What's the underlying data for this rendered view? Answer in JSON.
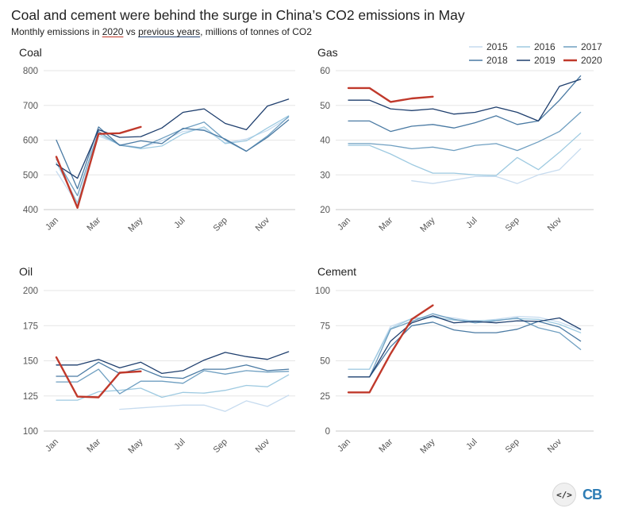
{
  "title": "Coal and cement were behind the surge in China’s CO2 emissions in May",
  "subtitle": {
    "prefix": "Monthly emissions in ",
    "highlight_2020": "2020",
    "middle": " vs ",
    "highlight_prev": "previous years",
    "suffix": ", millions of tonnes of CO2"
  },
  "legend": [
    {
      "label": "2015",
      "color": "#c6dbef"
    },
    {
      "label": "2016",
      "color": "#9ecae1"
    },
    {
      "label": "2017",
      "color": "#6f9fc1"
    },
    {
      "label": "2018",
      "color": "#4a7aa3"
    },
    {
      "label": "2019",
      "color": "#1f3f6e"
    },
    {
      "label": "2020",
      "color": "#c0392b"
    }
  ],
  "footer": {
    "code_icon": "code-icon",
    "brand": "CB"
  },
  "chart_data": [
    {
      "type": "line",
      "title": "Coal",
      "ylim": [
        400,
        800
      ],
      "yticks": [
        400,
        500,
        600,
        700,
        800
      ],
      "months": [
        "Jan",
        "Feb",
        "Mar",
        "Apr",
        "May",
        "Jun",
        "Jul",
        "Aug",
        "Sep",
        "Oct",
        "Nov",
        "Dec"
      ],
      "xticks": [
        "Jan",
        "Mar",
        "May",
        "Jul",
        "Sep",
        "Nov"
      ],
      "series": [
        {
          "name": "2015",
          "values": [
            510,
            415,
            612,
            588,
            578,
            598,
            625,
            632,
            592,
            603,
            628,
            665
          ]
        },
        {
          "name": "2016",
          "values": [
            535,
            420,
            618,
            586,
            575,
            583,
            618,
            638,
            590,
            598,
            635,
            670
          ]
        },
        {
          "name": "2017",
          "values": [
            545,
            440,
            625,
            585,
            578,
            605,
            632,
            652,
            600,
            568,
            612,
            668
          ]
        },
        {
          "name": "2018",
          "values": [
            600,
            460,
            638,
            585,
            598,
            590,
            634,
            628,
            603,
            568,
            608,
            658
          ]
        },
        {
          "name": "2019",
          "values": [
            530,
            490,
            630,
            608,
            610,
            635,
            680,
            690,
            648,
            630,
            698,
            718
          ]
        },
        {
          "name": "2020",
          "values": [
            552,
            405,
            618,
            620,
            638
          ]
        }
      ]
    },
    {
      "type": "line",
      "title": "Gas",
      "ylim": [
        20,
        60
      ],
      "yticks": [
        20,
        30,
        40,
        50,
        60
      ],
      "months": [
        "Jan",
        "Feb",
        "Mar",
        "Apr",
        "May",
        "Jun",
        "Jul",
        "Aug",
        "Sep",
        "Oct",
        "Nov",
        "Dec"
      ],
      "xticks": [
        "Jan",
        "Mar",
        "May",
        "Jul",
        "Sep",
        "Nov"
      ],
      "series": [
        {
          "name": "2015",
          "values": [
            null,
            null,
            null,
            28.3,
            27.5,
            28.5,
            29.5,
            29.5,
            27.5,
            30.0,
            31.5,
            37.5
          ]
        },
        {
          "name": "2016",
          "values": [
            38.5,
            38.5,
            36.0,
            33.0,
            30.5,
            30.5,
            30.0,
            29.8,
            35.0,
            31.5,
            36.5,
            42.0
          ]
        },
        {
          "name": "2017",
          "values": [
            39.0,
            39.0,
            38.5,
            37.5,
            38.0,
            37.0,
            38.5,
            39.0,
            37.0,
            39.5,
            42.5,
            48.0
          ]
        },
        {
          "name": "2018",
          "values": [
            45.5,
            45.5,
            42.5,
            44.0,
            44.5,
            43.5,
            45.0,
            47.0,
            44.5,
            45.5,
            51.5,
            58.5
          ]
        },
        {
          "name": "2019",
          "values": [
            51.5,
            51.5,
            49.0,
            48.5,
            49.0,
            47.5,
            48.0,
            49.5,
            48.0,
            45.5,
            55.5,
            57.5
          ]
        },
        {
          "name": "2020",
          "values": [
            55.0,
            55.0,
            51.0,
            52.0,
            52.5
          ]
        }
      ]
    },
    {
      "type": "line",
      "title": "Oil",
      "ylim": [
        100,
        200
      ],
      "yticks": [
        100,
        125,
        150,
        175,
        200
      ],
      "months": [
        "Jan",
        "Feb",
        "Mar",
        "Apr",
        "May",
        "Jun",
        "Jul",
        "Aug",
        "Sep",
        "Oct",
        "Nov",
        "Dec"
      ],
      "xticks": [
        "Jan",
        "Mar",
        "May",
        "Jul",
        "Sep",
        "Nov"
      ],
      "series": [
        {
          "name": "2015",
          "values": [
            null,
            null,
            null,
            115.5,
            116.5,
            117.5,
            118.5,
            118.5,
            114.0,
            121.5,
            117.5,
            125.5
          ]
        },
        {
          "name": "2016",
          "values": [
            122.0,
            122.0,
            128.0,
            129.0,
            130.5,
            124.0,
            127.5,
            127.0,
            129.0,
            132.5,
            131.5,
            140.0
          ]
        },
        {
          "name": "2017",
          "values": [
            135.0,
            135.0,
            144.0,
            126.5,
            135.5,
            135.5,
            134.0,
            143.0,
            140.5,
            143.0,
            142.0,
            142.5
          ]
        },
        {
          "name": "2018",
          "values": [
            139.0,
            139.0,
            149.0,
            141.0,
            144.5,
            138.5,
            137.5,
            144.0,
            144.0,
            147.0,
            143.0,
            144.0
          ]
        },
        {
          "name": "2019",
          "values": [
            147.0,
            147.0,
            151.0,
            145.0,
            149.0,
            141.0,
            143.0,
            150.5,
            156.0,
            153.0,
            151.0,
            156.5
          ]
        },
        {
          "name": "2020",
          "values": [
            152.5,
            124.5,
            124.0,
            141.5,
            142.5
          ]
        }
      ]
    },
    {
      "type": "line",
      "title": "Cement",
      "ylim": [
        0,
        100
      ],
      "yticks": [
        0,
        25,
        50,
        75,
        100
      ],
      "months": [
        "Jan",
        "Feb",
        "Mar",
        "Apr",
        "May",
        "Jun",
        "Jul",
        "Aug",
        "Sep",
        "Oct",
        "Nov",
        "Dec"
      ],
      "xticks": [
        "Jan",
        "Mar",
        "May",
        "Jul",
        "Sep",
        "Nov"
      ],
      "series": [
        {
          "name": "2015",
          "values": [
            44.0,
            44.0,
            74.5,
            80.0,
            82.0,
            80.5,
            78.0,
            79.5,
            81.5,
            81.0,
            77.5,
            72.0
          ]
        },
        {
          "name": "2016",
          "values": [
            44.0,
            44.0,
            73.0,
            80.0,
            81.0,
            79.0,
            78.5,
            79.0,
            80.0,
            79.5,
            76.0,
            70.0
          ]
        },
        {
          "name": "2017",
          "values": [
            38.5,
            38.5,
            72.5,
            78.0,
            83.5,
            79.5,
            77.0,
            78.5,
            80.5,
            73.5,
            70.0,
            58.0
          ]
        },
        {
          "name": "2018",
          "values": [
            38.5,
            38.5,
            60.0,
            75.0,
            77.5,
            72.0,
            70.0,
            70.0,
            72.5,
            78.0,
            74.0,
            64.0
          ]
        },
        {
          "name": "2019",
          "values": [
            38.5,
            38.5,
            64.0,
            77.0,
            82.0,
            77.0,
            78.0,
            77.0,
            78.5,
            78.0,
            80.5,
            72.5
          ]
        },
        {
          "name": "2020",
          "values": [
            27.5,
            27.5,
            55.0,
            79.5,
            89.5
          ]
        }
      ]
    }
  ]
}
